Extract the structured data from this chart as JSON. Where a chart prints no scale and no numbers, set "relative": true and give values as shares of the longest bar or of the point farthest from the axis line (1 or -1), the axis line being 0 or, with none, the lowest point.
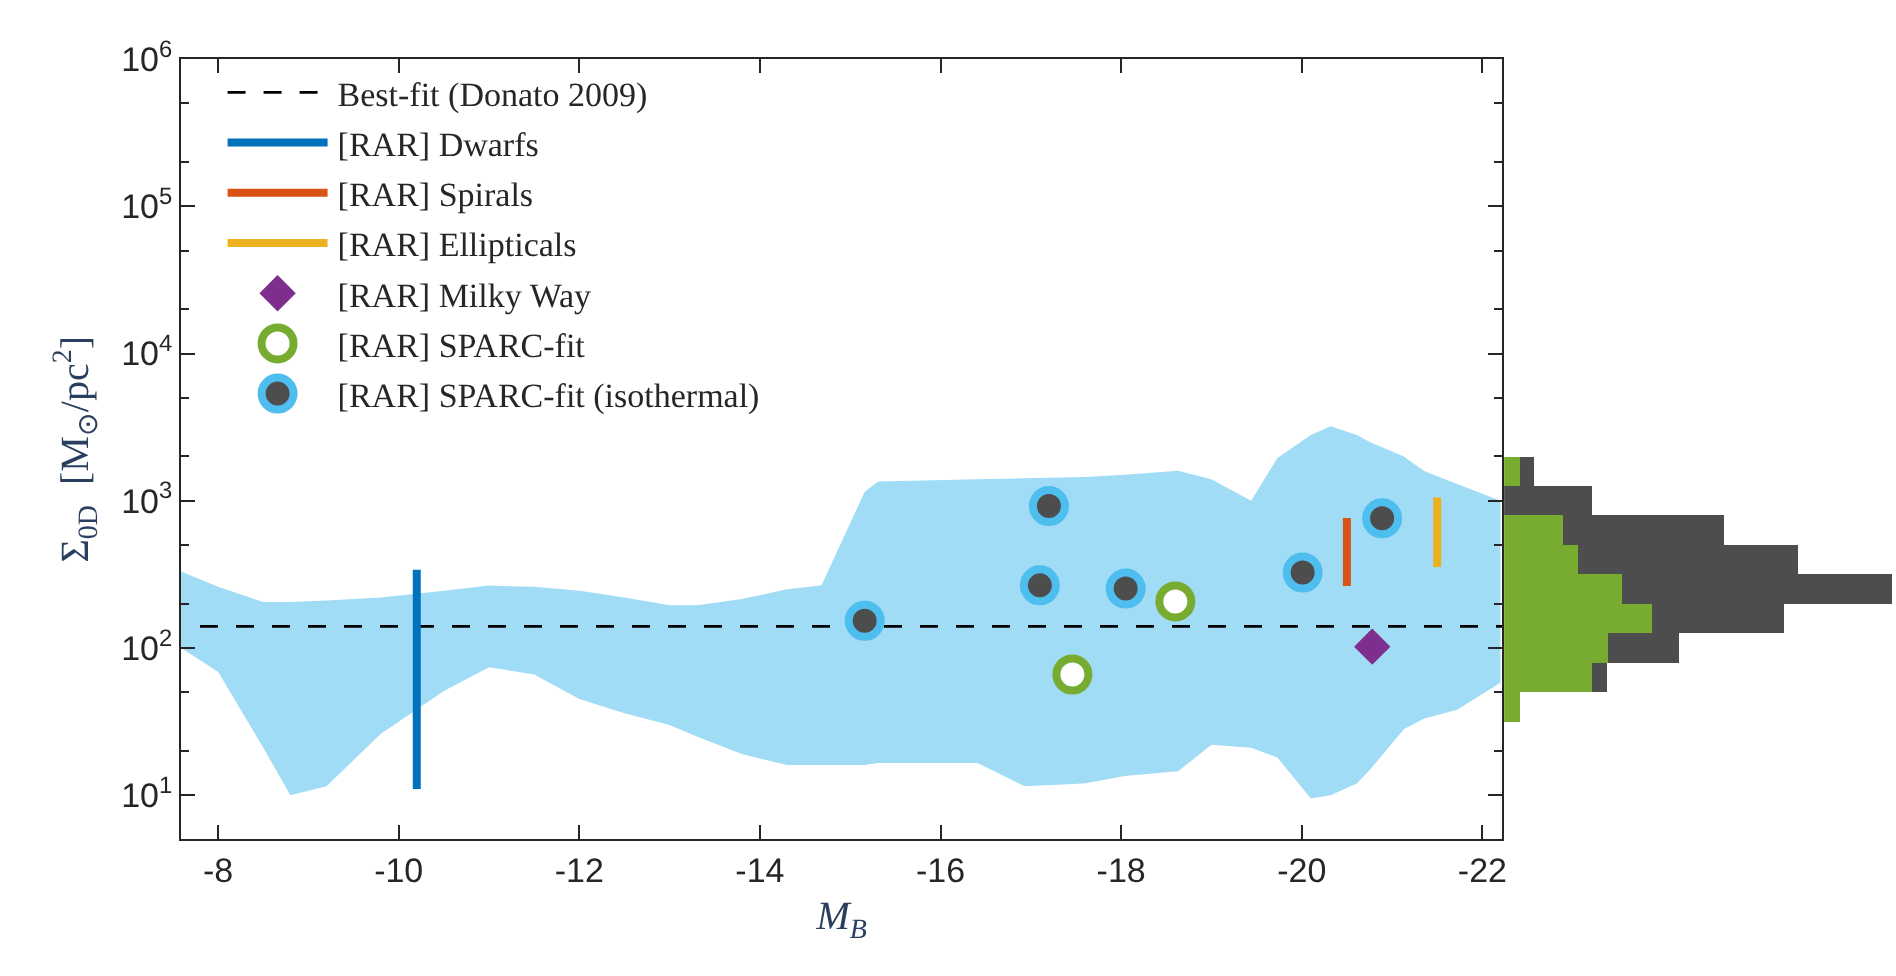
{
  "chart_data": [
    {
      "type": "scatter",
      "xlabel": "M$_{B}$",
      "ylabel": "Σ$_{0D}$  [M$_{⊙}$/pc$^{2}$]",
      "log": "y",
      "legend": "top left",
      "xlim": [
        -7.59,
        -22.22
      ],
      "xticks": [
        -8,
        -10,
        -12,
        -14,
        -16,
        -18,
        -20,
        -22
      ],
      "ylim": [
        5,
        1000000
      ],
      "yticks": [
        {
          "value": 10,
          "label": "10$^{1}$"
        },
        {
          "value": 100,
          "label": "10$^{2}$"
        },
        {
          "value": 1000,
          "label": "10$^{3}$"
        },
        {
          "value": 10000,
          "label": "10$^{4}$"
        },
        {
          "value": 100000,
          "label": "10$^{5}$"
        },
        {
          "value": 1000000,
          "label": "10$^{6}$"
        }
      ],
      "series": [
        {
          "type": "area",
          "color": "#a0dcf6",
          "x": [
            -7.59,
            -8,
            -8.5,
            -8.8,
            -9.2,
            -9.8,
            -10.5,
            -11,
            -11.5,
            -12,
            -12.5,
            -13,
            -13.3,
            -13.8,
            -14.3,
            -14.68,
            -15.16,
            -15.31,
            -16.41,
            -16.93,
            -17.59,
            -18.04,
            -18.63,
            -19.0,
            -19.44,
            -19.73,
            -20.1,
            -20.32,
            -20.61,
            -20.76,
            -21.13,
            -21.35,
            -21.72,
            -22.2
          ],
          "values": [
            330,
            260,
            205,
            205,
            210,
            220,
            245,
            265,
            260,
            245,
            220,
            195,
            195,
            215,
            250,
            265,
            1150,
            1350,
            1400,
            1420,
            1450,
            1500,
            1600,
            1400,
            1000,
            1950,
            2800,
            3200,
            2800,
            2500,
            2000,
            1600,
            1300,
            1000
          ]
        },
        {
          "type": "area",
          "color": "#ffffff",
          "x": [
            -7.59,
            -8,
            -8.5,
            -8.8,
            -9.2,
            -9.8,
            -10.5,
            -11,
            -11.5,
            -12,
            -12.5,
            -13,
            -13.3,
            -13.8,
            -14.3,
            -14.68,
            -15.16,
            -15.31,
            -16.41,
            -16.93,
            -17.59,
            -18.04,
            -18.63,
            -19.0,
            -19.44,
            -19.73,
            -20.1,
            -20.32,
            -20.61,
            -20.76,
            -21.13,
            -21.35,
            -21.72,
            -22.2
          ],
          "values": [
            100,
            69,
            21,
            10,
            11.5,
            26,
            51,
            74,
            66,
            45,
            36,
            30,
            25,
            19,
            16,
            16,
            16,
            16.5,
            16.5,
            11.5,
            12,
            13.5,
            14.5,
            22,
            21,
            18,
            9.5,
            10,
            12,
            15,
            28,
            33,
            38,
            58
          ]
        },
        {
          "type": "line",
          "name": "Best-fit (Donato 2009)",
          "color": "#000000",
          "line_style": "dashed",
          "x": [
            -7.8,
            -22.22
          ],
          "values": [
            140,
            140
          ]
        },
        {
          "type": "line",
          "name": "[RAR] Dwarfs",
          "color": "#0072bd",
          "x": [
            -10.2,
            -10.2,
            -10.2
          ],
          "values": [
            11,
            120,
            340
          ]
        },
        {
          "type": "line",
          "name": "[RAR] Spirals",
          "color": "#d95319",
          "x": [
            -20.5,
            -20.5
          ],
          "values": [
            263,
            764
          ]
        },
        {
          "type": "line",
          "name": "[RAR] Ellipticals",
          "color": "#edb120",
          "x": [
            -21.5,
            -21.5
          ],
          "values": [
            355,
            1050
          ]
        },
        {
          "type": "scatter",
          "name": "[RAR] Milky Way",
          "color": "#7e2f8e",
          "marker": "diamond",
          "x": [
            -20.78
          ],
          "values": [
            102
          ]
        },
        {
          "type": "scatter",
          "name": "[RAR] SPARC-fit",
          "color": "#77ac30",
          "marker": "circle-open",
          "x": [
            -17.46,
            -18.6
          ],
          "values": [
            66,
            207
          ]
        },
        {
          "type": "scatter",
          "name": "[RAR] SPARC-fit (isothermal)",
          "color": "#4d4d4d",
          "marker": "circle",
          "x": [
            -15.16,
            -17.2,
            -17.1,
            -18.05,
            -20.01,
            -20.89
          ],
          "values": [
            153,
            920,
            266,
            253,
            325,
            760
          ]
        }
      ]
    },
    {
      "type": "bar",
      "orientation": "horizontal",
      "relative": true,
      "stacked": true,
      "categories": [
        null,
        null,
        null,
        null,
        null,
        null,
        null,
        null,
        null
      ],
      "series": [
        {
          "color": "#77ac30",
          "values": [
            0.04,
            0,
            0.153,
            0.191,
            0.304,
            0.38,
            0.268,
            0.227,
            0.04
          ]
        },
        {
          "color": "#4d4d4d",
          "values": [
            0.037,
            0.227,
            0.414,
            0.567,
            0.696,
            0.342,
            0.184,
            0.039,
            0
          ]
        }
      ]
    }
  ]
}
